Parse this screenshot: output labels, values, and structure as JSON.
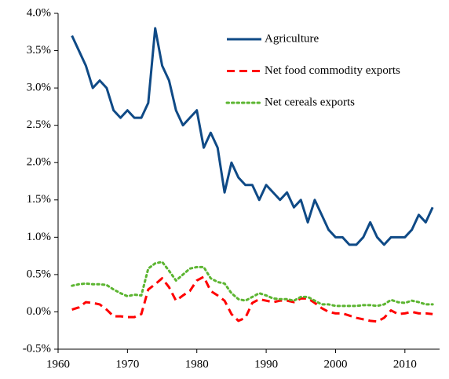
{
  "chart_data": {
    "type": "line",
    "x": [
      1962,
      1963,
      1964,
      1965,
      1966,
      1967,
      1968,
      1969,
      1970,
      1971,
      1972,
      1973,
      1974,
      1975,
      1976,
      1977,
      1978,
      1979,
      1980,
      1981,
      1982,
      1983,
      1984,
      1985,
      1986,
      1987,
      1988,
      1989,
      1990,
      1991,
      1992,
      1993,
      1994,
      1995,
      1996,
      1997,
      1998,
      1999,
      2000,
      2001,
      2002,
      2003,
      2004,
      2005,
      2006,
      2007,
      2008,
      2009,
      2010,
      2011,
      2012,
      2013,
      2014
    ],
    "series": [
      {
        "name": "Agriculture",
        "color": "#0f4a86",
        "linestyle": "solid",
        "values": [
          3.7,
          3.5,
          3.3,
          3.0,
          3.1,
          3.0,
          2.7,
          2.6,
          2.7,
          2.6,
          2.6,
          2.8,
          3.8,
          3.3,
          3.1,
          2.7,
          2.5,
          2.6,
          2.7,
          2.2,
          2.4,
          2.2,
          1.6,
          2.0,
          1.8,
          1.7,
          1.7,
          1.5,
          1.7,
          1.6,
          1.5,
          1.6,
          1.4,
          1.5,
          1.2,
          1.5,
          1.3,
          1.1,
          1.0,
          1.0,
          0.9,
          0.9,
          1.0,
          1.2,
          1.0,
          0.9,
          1.0,
          1.0,
          1.0,
          1.1,
          1.3,
          1.2,
          1.4
        ]
      },
      {
        "name": "Net food commodity exports",
        "color": "#ff0000",
        "linestyle": "dashed",
        "values": [
          0.03,
          0.06,
          0.13,
          0.12,
          0.1,
          0.03,
          -0.06,
          -0.06,
          -0.07,
          -0.07,
          -0.03,
          0.3,
          0.37,
          0.45,
          0.33,
          0.15,
          0.22,
          0.28,
          0.42,
          0.47,
          0.28,
          0.22,
          0.15,
          -0.03,
          -0.12,
          -0.08,
          0.12,
          0.17,
          0.15,
          0.13,
          0.15,
          0.15,
          0.13,
          0.18,
          0.18,
          0.12,
          0.05,
          0.0,
          -0.02,
          -0.02,
          -0.05,
          -0.08,
          -0.1,
          -0.12,
          -0.13,
          -0.08,
          0.02,
          -0.03,
          -0.02,
          0.0,
          -0.02,
          -0.02,
          -0.03
        ]
      },
      {
        "name": "Net cereals exports",
        "color": "#5cb531",
        "linestyle": "dotted",
        "values": [
          0.35,
          0.37,
          0.38,
          0.37,
          0.37,
          0.36,
          0.3,
          0.25,
          0.21,
          0.23,
          0.22,
          0.58,
          0.65,
          0.67,
          0.55,
          0.42,
          0.5,
          0.58,
          0.6,
          0.6,
          0.45,
          0.4,
          0.38,
          0.25,
          0.17,
          0.15,
          0.2,
          0.25,
          0.22,
          0.18,
          0.17,
          0.17,
          0.15,
          0.2,
          0.2,
          0.15,
          0.1,
          0.1,
          0.08,
          0.08,
          0.08,
          0.08,
          0.09,
          0.09,
          0.08,
          0.1,
          0.16,
          0.13,
          0.12,
          0.15,
          0.13,
          0.1,
          0.1
        ]
      }
    ],
    "xlim": [
      1960,
      2015
    ],
    "xticks": [
      1960,
      1970,
      1980,
      1990,
      2000,
      2010
    ],
    "ylim": [
      -0.5,
      4.0
    ],
    "yticks": [
      {
        "value": -0.5,
        "label": "-0.5%"
      },
      {
        "value": 0,
        "label": "0.0%"
      },
      {
        "value": 0.5,
        "label": "0.5%"
      },
      {
        "value": 1.0,
        "label": "1.0%"
      },
      {
        "value": 1.5,
        "label": "1.5%"
      },
      {
        "value": 2.0,
        "label": "2.0%"
      },
      {
        "value": 2.5,
        "label": "2.5%"
      },
      {
        "value": 3.0,
        "label": "3.0%"
      },
      {
        "value": 3.5,
        "label": "3.5%"
      },
      {
        "value": 4.0,
        "label": "4.0%"
      }
    ],
    "grid": false,
    "legend": "upper right"
  }
}
